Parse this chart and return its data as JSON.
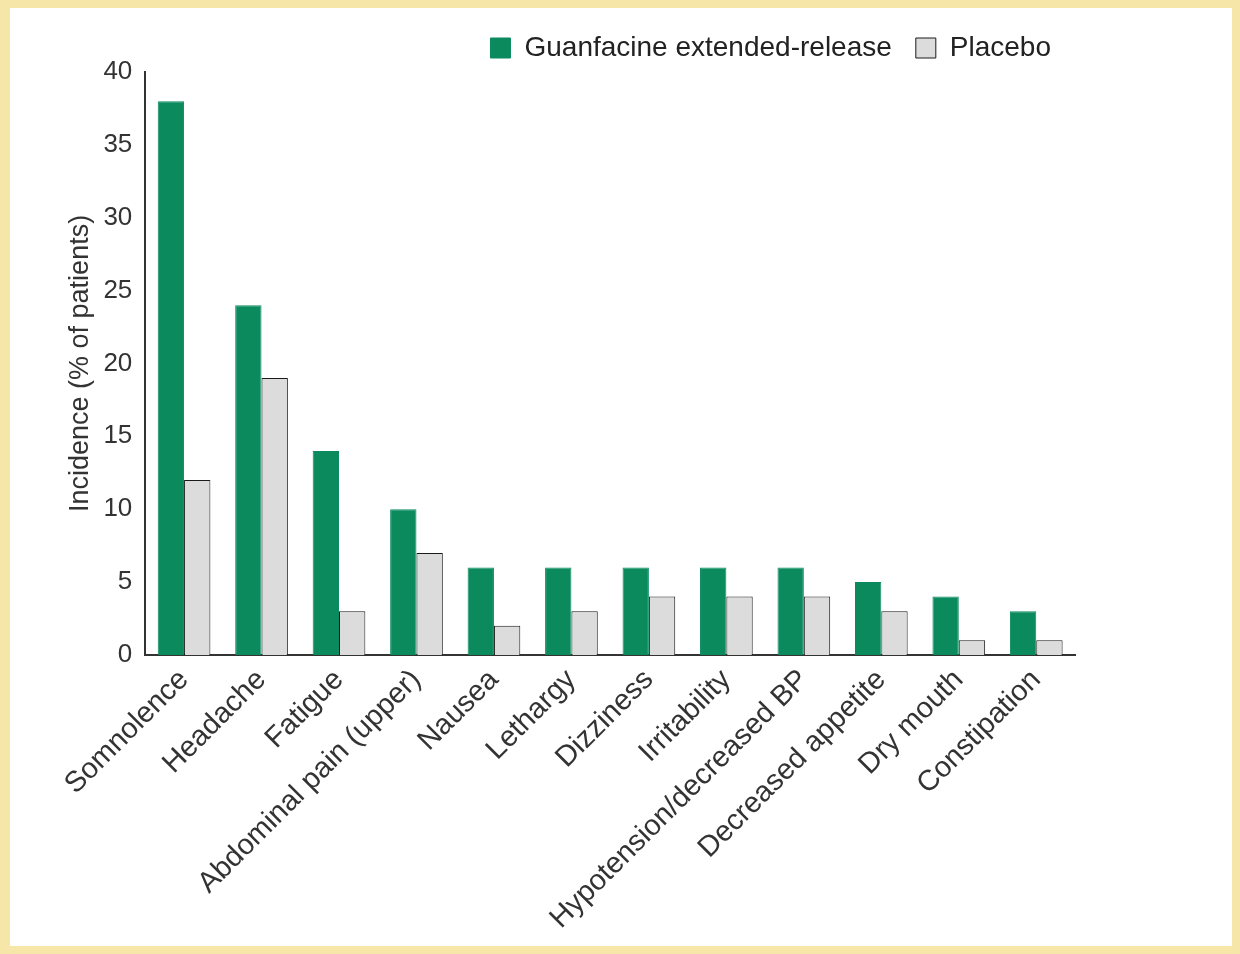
{
  "chart_data": {
    "type": "bar",
    "ylabel": "Incidence (% of patients)",
    "categories": [
      "Somnolence",
      "Headache",
      "Fatigue",
      "Abdominal pain (upper)",
      "Nausea",
      "Lethargy",
      "Dizziness",
      "Irritability",
      "Hypotension/decreased BP",
      "Decreased appetite",
      "Dry mouth",
      "Constipation"
    ],
    "series": [
      {
        "name": "Guanfacine extended-release",
        "color": "#0b8a5e",
        "values": [
          38,
          24,
          14,
          10,
          6,
          6,
          6,
          6,
          6,
          5,
          4,
          3
        ]
      },
      {
        "name": "Placebo",
        "color": "#dcdcdc",
        "values": [
          12,
          19,
          3,
          7,
          2,
          3,
          4,
          4,
          4,
          3,
          1,
          1
        ]
      }
    ],
    "ylim": [
      0,
      40
    ],
    "yticks": [
      0,
      5,
      10,
      15,
      20,
      25,
      30,
      35,
      40
    ],
    "legend": "top right"
  }
}
